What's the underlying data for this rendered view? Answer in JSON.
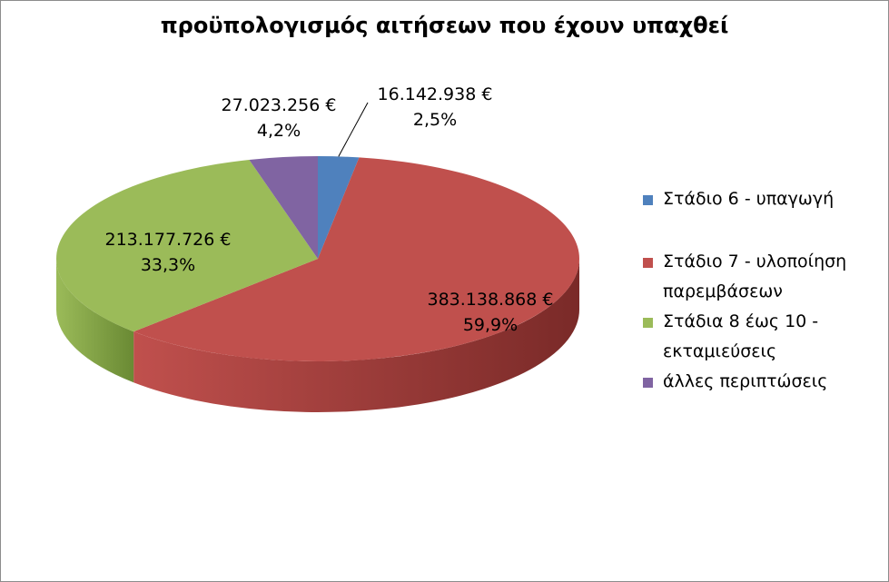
{
  "chart_data": {
    "type": "pie",
    "title": "προϋπολογισμός αιτήσεων που έχουν υπαχθεί",
    "categories": [
      "Στάδιο 6 - υπαγωγή",
      "Στάδιο 7 - υλοποίηση παρεμβάσεων",
      "Στάδια 8 έως 10 - εκταμιεύσεις",
      "άλλες περιπτώσεις"
    ],
    "values": [
      16142938,
      383138868,
      213177726,
      27023256
    ],
    "value_labels": [
      "16.142.938 €",
      "383.138.868 €",
      "213.177.726 €",
      "27.023.256 €"
    ],
    "percent_labels": [
      "2,5%",
      "59,9%",
      "33,3%",
      "4,2%"
    ],
    "percents": [
      2.5,
      59.9,
      33.3,
      4.2
    ],
    "colors": [
      "#4f81bd",
      "#c0504d",
      "#9bbb59",
      "#8064a2"
    ],
    "side_colors": [
      "#2f5a8c",
      "#7a2a28",
      "#6a8a34",
      "#56406f"
    ],
    "legend": {
      "placement": "right"
    },
    "style": "3d"
  }
}
